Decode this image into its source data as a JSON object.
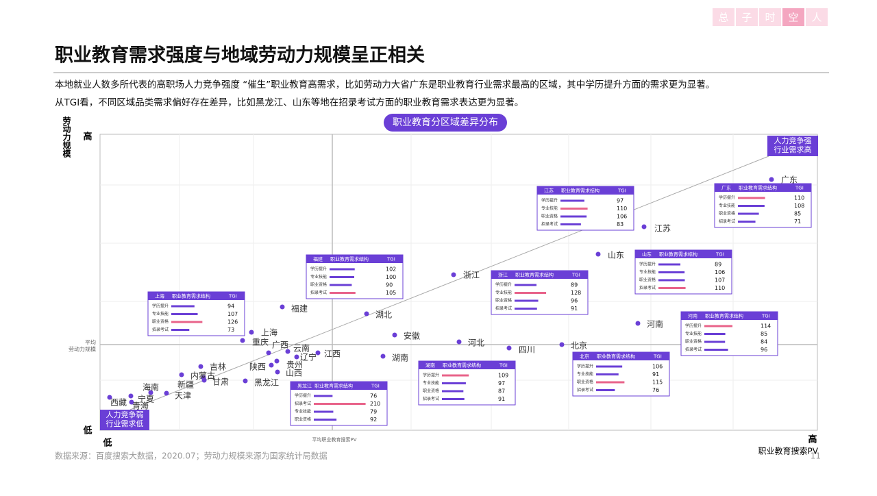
{
  "brand": [
    "总",
    "子",
    "时",
    "空",
    "人"
  ],
  "title": "职业教育需求强度与地域劳动力规模呈正相关",
  "description": [
    "本地就业人数多所代表的高职场人力竞争强度 “催生”职业教育高需求，比如劳动力大省广东是职业教育行业需求最高的区域，其中学历提升方面的需求更为显著。",
    "从TGI看，不同区域品类需求偏好存在差异，比如黑龙江、山东等地在招录考试方面的职业教育需求表达更为显著。"
  ],
  "chart": {
    "title": "职业教育分区域差异分布",
    "y_axis_label": "劳动力规模",
    "y_high": "高",
    "y_low": "低",
    "x_low": "低",
    "x_high": "高",
    "x_axis_label": "职业教育搜索PV",
    "y_mean_label": [
      "平均",
      "劳动力规模"
    ],
    "x_mean_label": "平均职业教育搜索PV",
    "corner_high": [
      "人力竞争强",
      "行业需求高"
    ],
    "corner_low": [
      "人力竞争弱",
      "行业需求低"
    ],
    "points": [
      "广东",
      "江苏",
      "山东",
      "浙江",
      "河南",
      "福建",
      "湖北",
      "上海",
      "安徽",
      "河北",
      "四川",
      "北京",
      "重庆",
      "广西",
      "云南",
      "江西",
      "辽宁",
      "贵州",
      "陕西",
      "山西",
      "湖南",
      "吉林",
      "内蒙古",
      "甘肃",
      "新疆",
      "黑龙江",
      "海南",
      "天津",
      "宁夏",
      "西藏",
      "青海"
    ],
    "insets": [
      {
        "region": "上海",
        "title": "职业教育需求结构",
        "tgi_label": "TGI",
        "rows": [
          {
            "label": "学历提升",
            "value": 94,
            "color": "#6a3fd6"
          },
          {
            "label": "专业技能",
            "value": 107,
            "color": "#6a3fd6"
          },
          {
            "label": "职业资格",
            "value": 126,
            "color": "#e8638a"
          },
          {
            "label": "招录考试",
            "value": 73,
            "color": "#6a3fd6"
          }
        ]
      },
      {
        "region": "福建",
        "title": "职业教育需求结构",
        "tgi_label": "TGI",
        "rows": [
          {
            "label": "学历提升",
            "value": 102,
            "color": "#6a3fd6"
          },
          {
            "label": "专业技能",
            "value": 100,
            "color": "#6a3fd6"
          },
          {
            "label": "职业资格",
            "value": 90,
            "color": "#6a3fd6"
          },
          {
            "label": "招录考试",
            "value": 105,
            "color": "#e8638a"
          }
        ]
      },
      {
        "region": "浙江",
        "title": "职业教育需求结构",
        "tgi_label": "TGI",
        "rows": [
          {
            "label": "学历提升",
            "value": 89,
            "color": "#6a3fd6"
          },
          {
            "label": "专业技能",
            "value": 128,
            "color": "#e8638a"
          },
          {
            "label": "职业资格",
            "value": 96,
            "color": "#6a3fd6"
          },
          {
            "label": "招录考试",
            "value": 91,
            "color": "#6a3fd6"
          }
        ]
      },
      {
        "region": "江苏",
        "title": "职业教育需求结构",
        "tgi_label": "TGI",
        "rows": [
          {
            "label": "学历提升",
            "value": 97,
            "color": "#6a3fd6"
          },
          {
            "label": "专业技能",
            "value": 110,
            "color": "#e8638a"
          },
          {
            "label": "职业资格",
            "value": 106,
            "color": "#6a3fd6"
          },
          {
            "label": "招录考试",
            "value": 83,
            "color": "#6a3fd6"
          }
        ]
      },
      {
        "region": "广东",
        "title": "职业教育需求结构",
        "tgi_label": "TGI",
        "rows": [
          {
            "label": "学历提升",
            "value": 110,
            "color": "#e8638a"
          },
          {
            "label": "专业技能",
            "value": 108,
            "color": "#6a3fd6"
          },
          {
            "label": "职业资格",
            "value": 85,
            "color": "#6a3fd6"
          },
          {
            "label": "招录考试",
            "value": 71,
            "color": "#6a3fd6"
          }
        ]
      },
      {
        "region": "山东",
        "title": "职业教育需求结构",
        "tgi_label": "TGI",
        "rows": [
          {
            "label": "学历提升",
            "value": 89,
            "color": "#6a3fd6"
          },
          {
            "label": "专业技能",
            "value": 106,
            "color": "#6a3fd6"
          },
          {
            "label": "职业资格",
            "value": 107,
            "color": "#6a3fd6"
          },
          {
            "label": "招录考试",
            "value": 110,
            "color": "#e8638a"
          }
        ]
      },
      {
        "region": "河南",
        "title": "职业教育需求结构",
        "tgi_label": "TGI",
        "rows": [
          {
            "label": "学历提升",
            "value": 114,
            "color": "#e8638a"
          },
          {
            "label": "专业技能",
            "value": 85,
            "color": "#6a3fd6"
          },
          {
            "label": "职业资格",
            "value": 84,
            "color": "#6a3fd6"
          },
          {
            "label": "招录考试",
            "value": 96,
            "color": "#6a3fd6"
          }
        ]
      },
      {
        "region": "北京",
        "title": "职业教育需求结构",
        "tgi_label": "TGI",
        "rows": [
          {
            "label": "学历提升",
            "value": 106,
            "color": "#6a3fd6"
          },
          {
            "label": "专业技能",
            "value": 91,
            "color": "#6a3fd6"
          },
          {
            "label": "职业资格",
            "value": 115,
            "color": "#e8638a"
          },
          {
            "label": "招录考试",
            "value": 76,
            "color": "#6a3fd6"
          }
        ]
      },
      {
        "region": "湖南",
        "title": "职业教育需求结构",
        "tgi_label": "TGI",
        "rows": [
          {
            "label": "学历提升",
            "value": 109,
            "color": "#e8638a"
          },
          {
            "label": "专业技能",
            "value": 97,
            "color": "#6a3fd6"
          },
          {
            "label": "职业资格",
            "value": 87,
            "color": "#6a3fd6"
          },
          {
            "label": "招录考试",
            "value": 91,
            "color": "#6a3fd6"
          }
        ]
      },
      {
        "region": "黑龙江",
        "title": "职业教育需求结构",
        "tgi_label": "TGI",
        "rows": [
          {
            "label": "学历提升",
            "value": 76,
            "color": "#6a3fd6"
          },
          {
            "label": "招录考试",
            "value": 210,
            "color": "#e8638a"
          },
          {
            "label": "专业技能",
            "value": 79,
            "color": "#6a3fd6"
          },
          {
            "label": "职业资格",
            "value": 92,
            "color": "#6a3fd6"
          }
        ]
      }
    ]
  },
  "footer": {
    "source": "数据来源：百度搜索大数据，2020.07；劳动力规模来源为国家统计局数据",
    "page": "11"
  }
}
